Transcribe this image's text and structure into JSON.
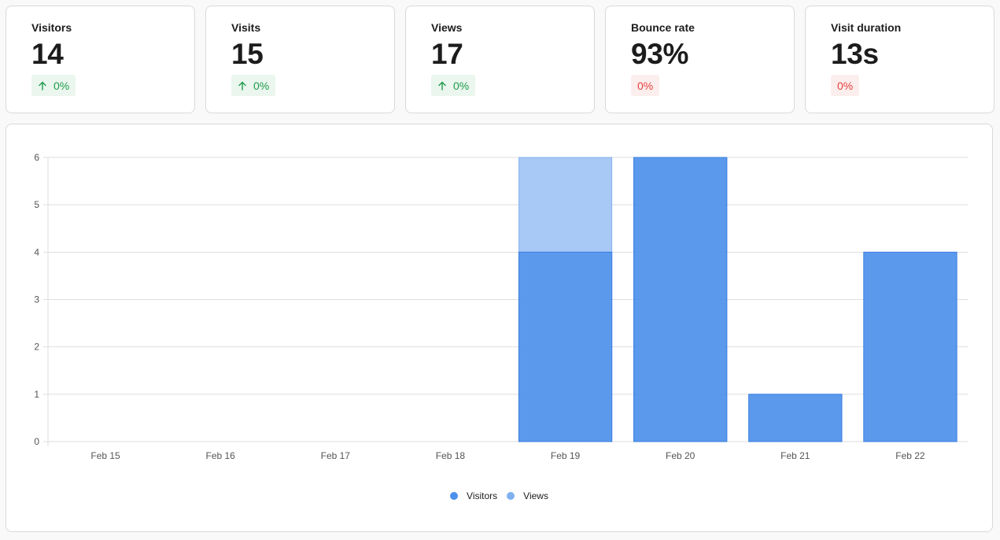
{
  "metrics": [
    {
      "label": "Visitors",
      "value": "14",
      "change": "0%",
      "trend": "up",
      "icon": "arrow-up-icon"
    },
    {
      "label": "Visits",
      "value": "15",
      "change": "0%",
      "trend": "up",
      "icon": "arrow-up-icon"
    },
    {
      "label": "Views",
      "value": "17",
      "change": "0%",
      "trend": "up",
      "icon": "arrow-up-icon"
    },
    {
      "label": "Bounce rate",
      "value": "93%",
      "change": "0%",
      "trend": "neutral"
    },
    {
      "label": "Visit duration",
      "value": "13s",
      "change": "0%",
      "trend": "neutral"
    }
  ],
  "colors": {
    "visitors": "#4d90ec",
    "views": "#a8c8f5",
    "legend_visitors": "#4d90ec",
    "legend_views": "#7fb1ef",
    "positive": "#1f9a4c",
    "negative": "#e0413f",
    "grid": "#dedede",
    "tick": "#555555"
  },
  "chart_data": {
    "type": "bar",
    "categories": [
      "Feb 15",
      "Feb 16",
      "Feb 17",
      "Feb 18",
      "Feb 19",
      "Feb 20",
      "Feb 21",
      "Feb 22"
    ],
    "series": [
      {
        "name": "Visitors",
        "values": [
          0,
          0,
          0,
          0,
          4,
          6,
          1,
          4
        ]
      },
      {
        "name": "Views",
        "values": [
          0,
          0,
          0,
          0,
          6,
          6,
          1,
          4
        ]
      }
    ],
    "ylim": [
      0,
      6
    ],
    "yticks": [
      0,
      1,
      2,
      3,
      4,
      5,
      6
    ],
    "grid": true,
    "legend": "bottom-center"
  }
}
